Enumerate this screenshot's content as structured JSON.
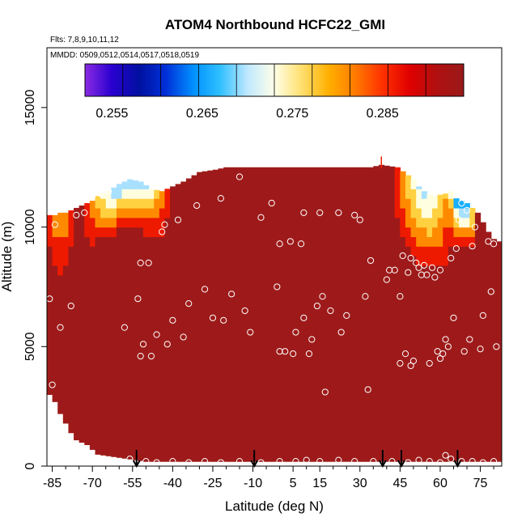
{
  "chart_data": {
    "type": "heatmap",
    "title": "ATOM4 Northbound HCFC22_GMI",
    "flights_label": "Flts: 7,8,9,10,11,12",
    "dates_label": "MMDD: 0509,0512,0514,0517,0518,0519",
    "xlabel": "Latitude (deg N)",
    "ylabel": "Altitude (m)",
    "xlim": [
      -87,
      83
    ],
    "ylim": [
      0,
      17500
    ],
    "x_ticks": [
      -85,
      -70,
      -55,
      -40,
      -25,
      -10,
      5,
      15,
      30,
      45,
      60,
      75
    ],
    "y_ticks": [
      0,
      5000,
      10000,
      15000
    ],
    "colorbar": {
      "range": [
        0.252,
        0.294
      ],
      "tick_values": [
        0.255,
        0.265,
        0.275,
        0.285
      ],
      "tick_labels": [
        "0.255",
        "0.265",
        "0.275",
        "0.285"
      ],
      "colors": [
        "#7a1fe0",
        "#1010a8",
        "#0050ee",
        "#18b0ff",
        "#a8e0ff",
        "#ffffe0",
        "#ffd040",
        "#ff8a00",
        "#ee1a00",
        "#9e1a1a"
      ]
    },
    "curtain_top_profile": {
      "lat": [
        -86,
        -84,
        -82,
        -80,
        -76,
        -72,
        -70,
        -68,
        -64,
        -60,
        -56,
        -52,
        -48,
        -44,
        -40,
        -36,
        -30,
        -24,
        -20,
        -12,
        -5,
        0,
        10,
        20,
        28,
        34,
        38,
        44,
        50,
        52,
        55,
        58,
        62,
        64,
        66,
        70,
        74,
        78,
        80,
        82
      ],
      "top_m": [
        10500,
        10500,
        10600,
        10600,
        10800,
        11000,
        11100,
        11300,
        11500,
        11800,
        12000,
        11900,
        11600,
        11500,
        11700,
        11900,
        12300,
        12400,
        12500,
        12500,
        12500,
        12500,
        12500,
        12500,
        12500,
        12500,
        12600,
        12500,
        12000,
        11700,
        11400,
        11300,
        11400,
        11500,
        11200,
        11000,
        10600,
        9800,
        9500,
        9400
      ]
    },
    "curtain_bottom_profile": {
      "lat": [
        -87,
        -86,
        -84,
        -82,
        -80,
        -78,
        -76,
        -72,
        -70,
        -68,
        -62,
        -56,
        -50,
        0,
        50,
        83
      ],
      "bottom_m": [
        3500,
        3000,
        2700,
        2200,
        1800,
        1400,
        1100,
        900,
        700,
        500,
        400,
        300,
        200,
        200,
        200,
        200
      ]
    },
    "low_value_zones": [
      {
        "lat_center": -57,
        "lat_width": 34,
        "alt_top": 12000,
        "depth_m": 2200,
        "min_value": 0.268
      },
      {
        "lat_center": 54,
        "lat_width": 24,
        "alt_top": 12500,
        "depth_m": 3500,
        "min_value": 0.272
      },
      {
        "lat_center": 68,
        "lat_width": 12,
        "alt_top": 11300,
        "depth_m": 2000,
        "min_value": 0.263
      },
      {
        "lat_center": -82,
        "lat_width": 10,
        "alt_top": 10500,
        "depth_m": 3000,
        "min_value": 0.282
      }
    ],
    "ascent_descent_arrows_lat": [
      -53.5,
      -9.5,
      38.5,
      45.5,
      66.5
    ],
    "sample_points": [
      {
        "lat": -86,
        "alt": 7000
      },
      {
        "lat": -85,
        "alt": 3400
      },
      {
        "lat": -84,
        "alt": 10100
      },
      {
        "lat": -82,
        "alt": 5800
      },
      {
        "lat": -80,
        "alt": 1300
      },
      {
        "lat": -78,
        "alt": 6700
      },
      {
        "lat": -76,
        "alt": 10500
      },
      {
        "lat": -73,
        "alt": 10600
      },
      {
        "lat": -70,
        "alt": 11300
      },
      {
        "lat": -67,
        "alt": 11400
      },
      {
        "lat": -64,
        "alt": 11500
      },
      {
        "lat": -58,
        "alt": 5800
      },
      {
        "lat": -53,
        "alt": 7000
      },
      {
        "lat": -52,
        "alt": 8500
      },
      {
        "lat": -52,
        "alt": 4600
      },
      {
        "lat": -51,
        "alt": 5100
      },
      {
        "lat": -49,
        "alt": 8500
      },
      {
        "lat": -48,
        "alt": 4600
      },
      {
        "lat": -46,
        "alt": 5500
      },
      {
        "lat": -44,
        "alt": 9800
      },
      {
        "lat": -43,
        "alt": 10100
      },
      {
        "lat": -42,
        "alt": 5100
      },
      {
        "lat": -40,
        "alt": 6100
      },
      {
        "lat": -38,
        "alt": 10300
      },
      {
        "lat": -36,
        "alt": 5400
      },
      {
        "lat": -34,
        "alt": 6800
      },
      {
        "lat": -31,
        "alt": 10900
      },
      {
        "lat": -28,
        "alt": 7400
      },
      {
        "lat": -25,
        "alt": 6200
      },
      {
        "lat": -22,
        "alt": 11200
      },
      {
        "lat": -21,
        "alt": 6100
      },
      {
        "lat": -18,
        "alt": 7200
      },
      {
        "lat": -15,
        "alt": 12100
      },
      {
        "lat": -13,
        "alt": 6500
      },
      {
        "lat": -11,
        "alt": 5600
      },
      {
        "lat": -7,
        "alt": 10400
      },
      {
        "lat": -3,
        "alt": 11000
      },
      {
        "lat": -1,
        "alt": 7500
      },
      {
        "lat": 0,
        "alt": 9300
      },
      {
        "lat": 0,
        "alt": 4800
      },
      {
        "lat": 2,
        "alt": 4800
      },
      {
        "lat": 4,
        "alt": 9400
      },
      {
        "lat": 5,
        "alt": 4700
      },
      {
        "lat": 6,
        "alt": 5600
      },
      {
        "lat": 8,
        "alt": 9300
      },
      {
        "lat": 9,
        "alt": 10600
      },
      {
        "lat": 9,
        "alt": 6200
      },
      {
        "lat": 11,
        "alt": 4700
      },
      {
        "lat": 12,
        "alt": 5300
      },
      {
        "lat": 14,
        "alt": 6700
      },
      {
        "lat": 15,
        "alt": 10600
      },
      {
        "lat": 16,
        "alt": 7100
      },
      {
        "lat": 17,
        "alt": 3100
      },
      {
        "lat": 19,
        "alt": 6500
      },
      {
        "lat": 22,
        "alt": 10600
      },
      {
        "lat": 23,
        "alt": 5600
      },
      {
        "lat": 25,
        "alt": 6300
      },
      {
        "lat": 28,
        "alt": 10500
      },
      {
        "lat": 30,
        "alt": 10300
      },
      {
        "lat": 32,
        "alt": 7100
      },
      {
        "lat": 33,
        "alt": 3200
      },
      {
        "lat": 34,
        "alt": 8600
      },
      {
        "lat": 40,
        "alt": 7800
      },
      {
        "lat": 41,
        "alt": 8200
      },
      {
        "lat": 43,
        "alt": 8200
      },
      {
        "lat": 45,
        "alt": 7100
      },
      {
        "lat": 45,
        "alt": 4300
      },
      {
        "lat": 46,
        "alt": 8800
      },
      {
        "lat": 47,
        "alt": 4700
      },
      {
        "lat": 48,
        "alt": 8100
      },
      {
        "lat": 49,
        "alt": 8700
      },
      {
        "lat": 49,
        "alt": 4200
      },
      {
        "lat": 50,
        "alt": 4400
      },
      {
        "lat": 51,
        "alt": 8500
      },
      {
        "lat": 52,
        "alt": 8300
      },
      {
        "lat": 53,
        "alt": 8000
      },
      {
        "lat": 54,
        "alt": 8400
      },
      {
        "lat": 55,
        "alt": 8000
      },
      {
        "lat": 56,
        "alt": 4300
      },
      {
        "lat": 57,
        "alt": 8300
      },
      {
        "lat": 58,
        "alt": 7900
      },
      {
        "lat": 59,
        "alt": 4800
      },
      {
        "lat": 60,
        "alt": 8200
      },
      {
        "lat": 60,
        "alt": 4500
      },
      {
        "lat": 61,
        "alt": 4700
      },
      {
        "lat": 62,
        "alt": 5300
      },
      {
        "lat": 63,
        "alt": 5000
      },
      {
        "lat": 64,
        "alt": 8700
      },
      {
        "lat": 65,
        "alt": 6200
      },
      {
        "lat": 66,
        "alt": 9100
      },
      {
        "lat": 67,
        "alt": 10300
      },
      {
        "lat": 68,
        "alt": 11000
      },
      {
        "lat": 69,
        "alt": 4800
      },
      {
        "lat": 70,
        "alt": 10700
      },
      {
        "lat": 71,
        "alt": 5300
      },
      {
        "lat": 72,
        "alt": 9200
      },
      {
        "lat": 73,
        "alt": 10000
      },
      {
        "lat": 75,
        "alt": 4900
      },
      {
        "lat": 76,
        "alt": 6300
      },
      {
        "lat": 78,
        "alt": 9400
      },
      {
        "lat": 79,
        "alt": 7300
      },
      {
        "lat": 80,
        "alt": 9300
      },
      {
        "lat": 81,
        "alt": 5000
      },
      {
        "lat": -83,
        "alt": 200
      },
      {
        "lat": -72,
        "alt": 250
      },
      {
        "lat": -56,
        "alt": 300
      },
      {
        "lat": -50,
        "alt": 200
      },
      {
        "lat": -46,
        "alt": 150
      },
      {
        "lat": -40,
        "alt": 200
      },
      {
        "lat": -34,
        "alt": 150
      },
      {
        "lat": -28,
        "alt": 200
      },
      {
        "lat": -22,
        "alt": 150
      },
      {
        "lat": -15,
        "alt": 200
      },
      {
        "lat": -7,
        "alt": 150
      },
      {
        "lat": 0,
        "alt": 200
      },
      {
        "lat": 6,
        "alt": 200
      },
      {
        "lat": 10,
        "alt": 250
      },
      {
        "lat": 15,
        "alt": 200
      },
      {
        "lat": 22,
        "alt": 250
      },
      {
        "lat": 28,
        "alt": 200
      },
      {
        "lat": 35,
        "alt": 200
      },
      {
        "lat": 42,
        "alt": 200
      },
      {
        "lat": 48,
        "alt": 150
      },
      {
        "lat": 52,
        "alt": 250
      },
      {
        "lat": 56,
        "alt": 200
      },
      {
        "lat": 60,
        "alt": 150
      },
      {
        "lat": 62,
        "alt": 450
      },
      {
        "lat": 64,
        "alt": 300
      },
      {
        "lat": 68,
        "alt": 200
      },
      {
        "lat": 72,
        "alt": 200
      },
      {
        "lat": 76,
        "alt": 150
      },
      {
        "lat": 80,
        "alt": 200
      }
    ]
  }
}
